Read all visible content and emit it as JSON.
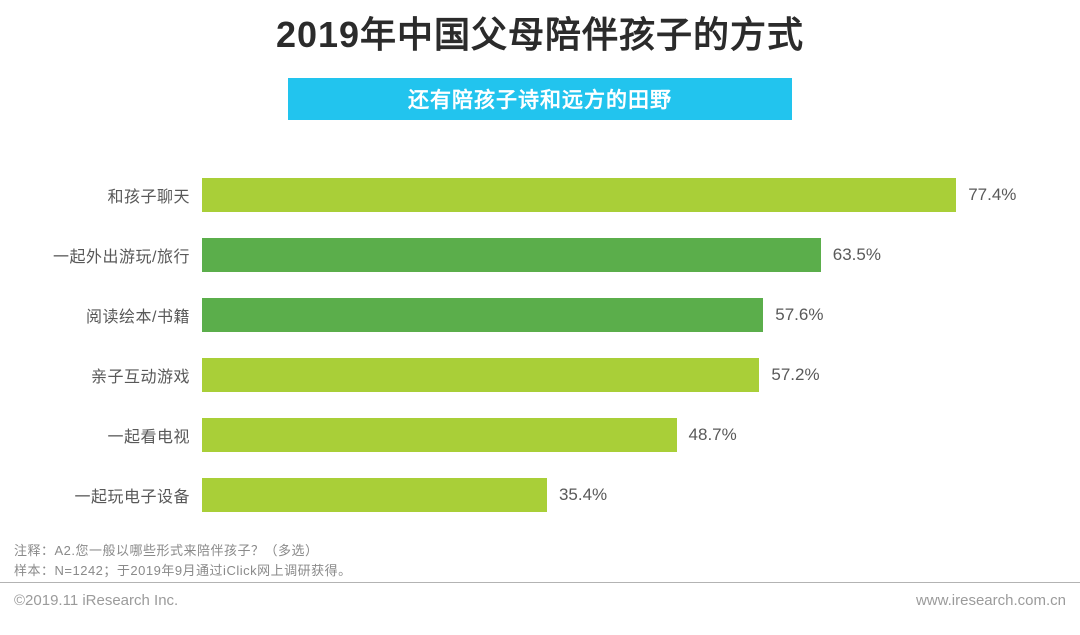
{
  "header": {
    "title": "2019年中国父母陪伴孩子的方式",
    "subtitle": "还有陪孩子诗和远方的田野"
  },
  "chart_data": {
    "type": "bar",
    "orientation": "horizontal",
    "title": "2019年中国父母陪伴孩子的方式",
    "categories": [
      "和孩子聊天",
      "一起外出游玩/旅行",
      "阅读绘本/书籍",
      "亲子互动游戏",
      "一起看电视",
      "一起玩电子设备"
    ],
    "values": [
      77.4,
      63.5,
      57.6,
      57.2,
      48.7,
      35.4
    ],
    "value_labels": [
      "77.4%",
      "63.5%",
      "57.6%",
      "57.2%",
      "48.7%",
      "35.4%"
    ],
    "bar_colors": [
      "#a9cf38",
      "#5bae4b",
      "#5bae4b",
      "#a9cf38",
      "#a9cf38",
      "#a9cf38"
    ],
    "xlim": [
      0,
      86
    ],
    "grid": false,
    "legend": "none",
    "data_labels": "outside-end"
  },
  "notes": {
    "line1": "注释：A2.您一般以哪些形式来陪伴孩子？（多选）",
    "line2": "样本：N=1242；于2019年9月通过iClick网上调研获得。"
  },
  "footer": {
    "copyright": "©2019.11 iResearch Inc.",
    "website": "www.iresearch.com.cn"
  },
  "colors": {
    "light_green": "#a9cf38",
    "green": "#5bae4b",
    "cyan_banner": "#22c4ee",
    "title_text": "#2b2b2b",
    "label_text": "#595959",
    "note_text": "#8a8a8a",
    "footer_text": "#9b9b9b"
  }
}
